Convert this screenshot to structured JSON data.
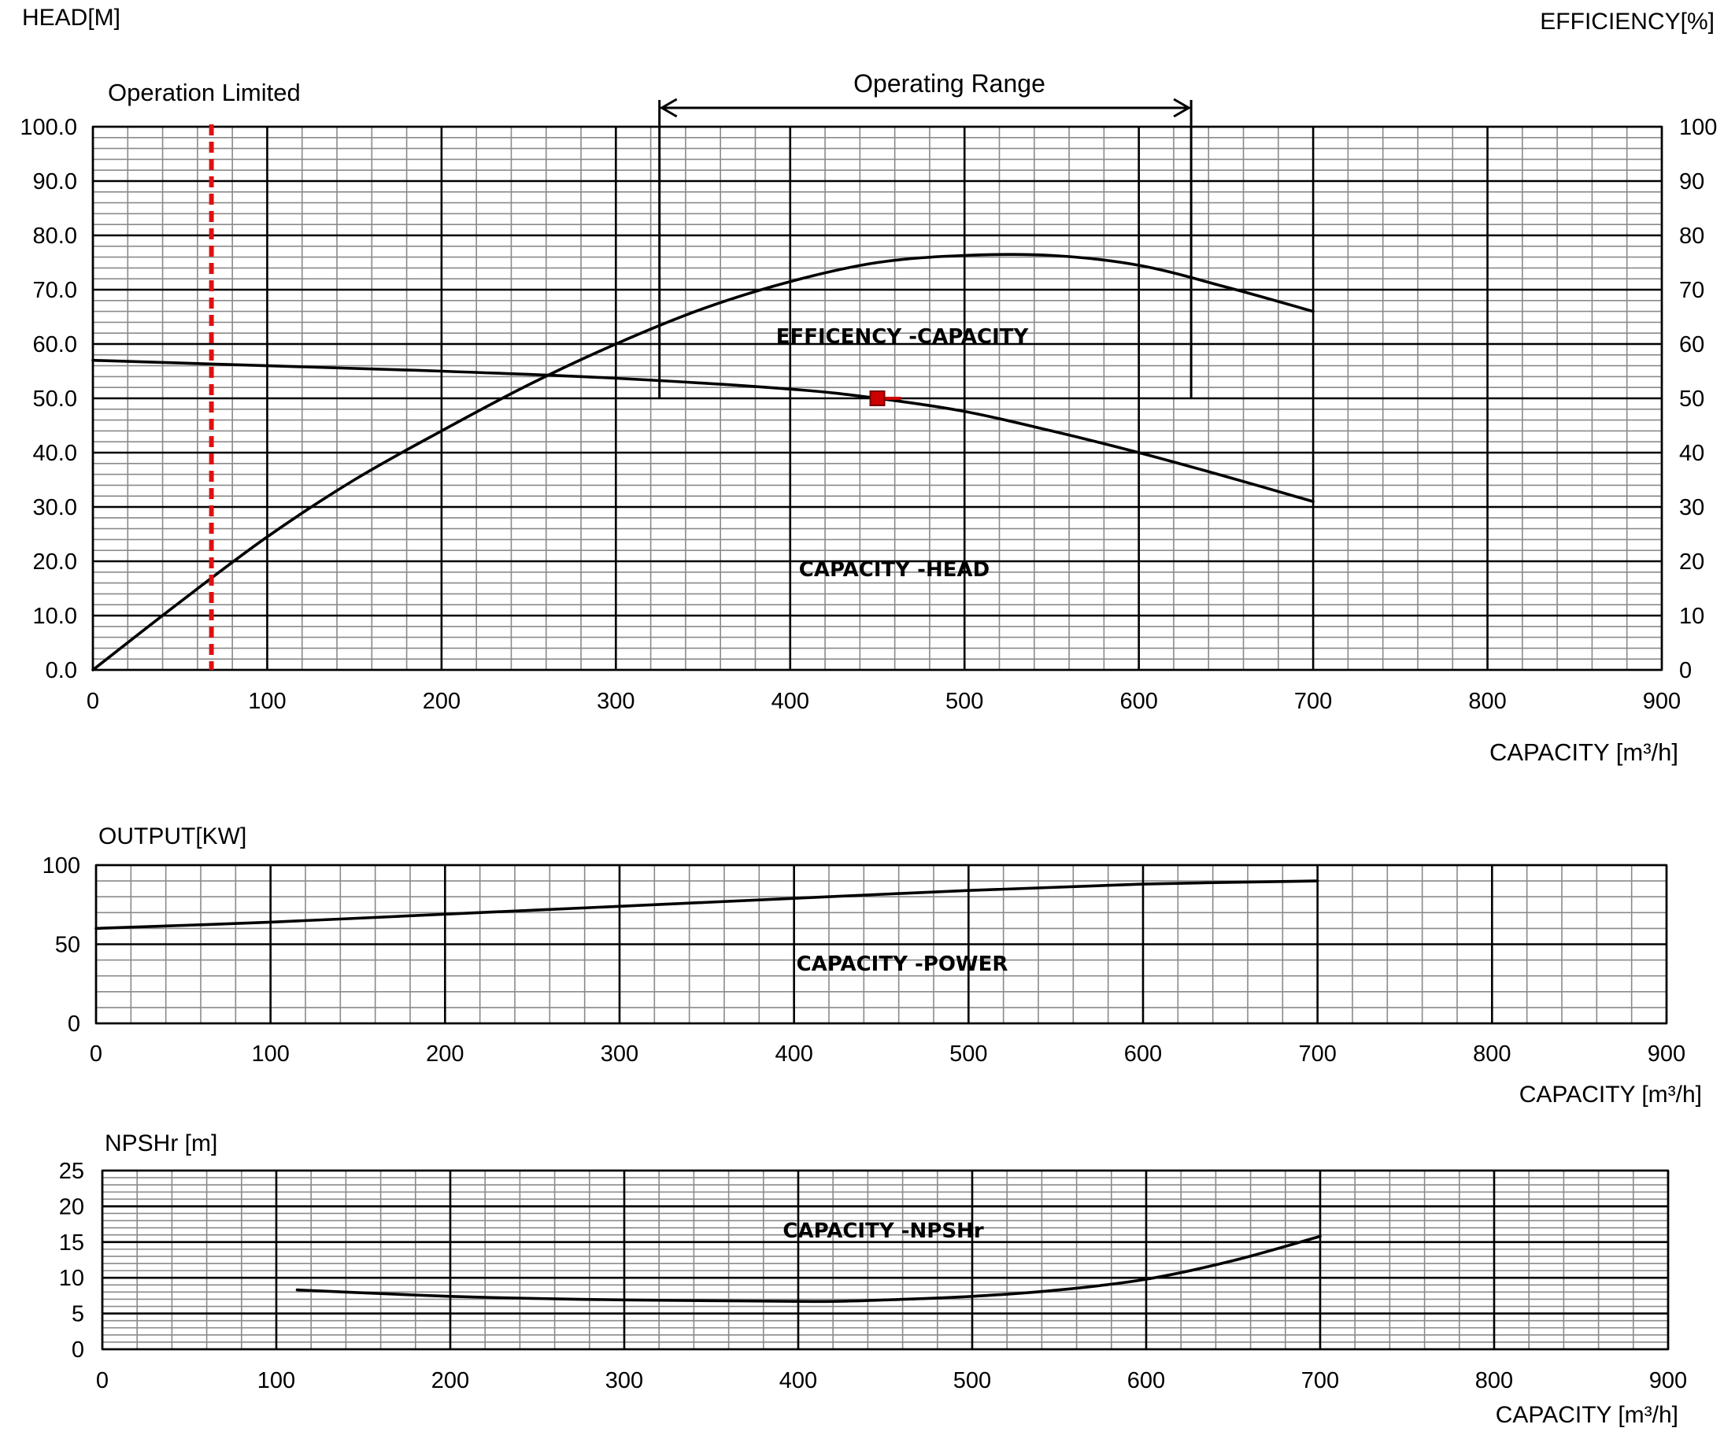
{
  "colors": {
    "curve": "#000000",
    "operation_limit": "#e01010",
    "duty_point": "#cc0000",
    "major_grid": "#000000",
    "minor_grid": "#8a8a8a"
  },
  "chart_data": [
    {
      "id": "head_efficiency",
      "type": "line",
      "ylabel_left": "HEAD[M]",
      "ylabel_right": "EFFICIENCY[%]",
      "xlabel": "CAPACITY [m³/h]",
      "xlim": [
        0,
        900
      ],
      "ylim": [
        0,
        100
      ],
      "x_ticks": [
        "0",
        "100",
        "200",
        "300",
        "400",
        "500",
        "600",
        "700",
        "800",
        "900"
      ],
      "y_ticks_left": [
        "0.0",
        "10.0",
        "20.0",
        "30.0",
        "40.0",
        "50.0",
        "60.0",
        "70.0",
        "80.0",
        "90.0",
        "100.0"
      ],
      "y_ticks_right": [
        "0",
        "10",
        "20",
        "30",
        "40",
        "50",
        "60",
        "70",
        "80",
        "90",
        "100"
      ],
      "grid": "on",
      "series": [
        {
          "name": "EFFICENCY -CAPACITY",
          "x": [
            0,
            50,
            100,
            150,
            200,
            250,
            300,
            350,
            400,
            450,
            500,
            550,
            600,
            650,
            700
          ],
          "y": [
            0,
            12.5,
            24.5,
            35,
            44,
            52.5,
            60,
            66.5,
            71.5,
            75,
            76.3,
            76.3,
            74.5,
            70.5,
            66
          ]
        },
        {
          "name": "CAPACITY -HEAD",
          "x": [
            0,
            100,
            200,
            300,
            400,
            450,
            500,
            550,
            600,
            650,
            700
          ],
          "y": [
            57,
            56,
            55,
            53.7,
            51.7,
            50,
            47.6,
            44,
            40,
            35.6,
            31
          ]
        }
      ],
      "annotations": {
        "operation_limited": {
          "label": "Operation Limited",
          "x": 68
        },
        "operating_range": {
          "label": "Operating Range",
          "x_from": 325,
          "x_to": 630,
          "y_base": 50
        },
        "duty_point": {
          "x": 450,
          "y": 50
        }
      }
    },
    {
      "id": "power",
      "type": "line",
      "ylabel": "OUTPUT[KW]",
      "xlabel": "CAPACITY  [m³/h]",
      "xlim": [
        0,
        900
      ],
      "ylim": [
        0,
        100
      ],
      "x_ticks": [
        "0",
        "100",
        "200",
        "300",
        "400",
        "500",
        "600",
        "700",
        "800",
        "900"
      ],
      "y_ticks": [
        "0",
        "50",
        "100"
      ],
      "grid": "on",
      "series": [
        {
          "name": "CAPACITY -POWER",
          "x": [
            0,
            100,
            200,
            300,
            400,
            500,
            600,
            700
          ],
          "y": [
            60,
            64,
            69,
            74,
            79,
            84,
            88,
            90
          ]
        }
      ]
    },
    {
      "id": "npshr",
      "type": "line",
      "ylabel": "NPSHr [m]",
      "xlabel": "CAPACITY  [m³/h]",
      "xlim": [
        0,
        900
      ],
      "ylim": [
        0,
        25
      ],
      "x_ticks": [
        "0",
        "100",
        "200",
        "300",
        "400",
        "500",
        "600",
        "700",
        "800",
        "900"
      ],
      "y_ticks": [
        "0",
        "5",
        "10",
        "15",
        "20",
        "25"
      ],
      "grid": "on",
      "series": [
        {
          "name": "CAPACITY -NPSHr",
          "x": [
            112,
            150,
            200,
            250,
            300,
            350,
            400,
            420,
            450,
            500,
            550,
            600,
            650,
            700
          ],
          "y": [
            8.3,
            7.9,
            7.4,
            7.1,
            6.9,
            6.8,
            6.7,
            6.7,
            6.9,
            7.4,
            8.3,
            9.8,
            12.4,
            15.8
          ]
        }
      ]
    }
  ]
}
